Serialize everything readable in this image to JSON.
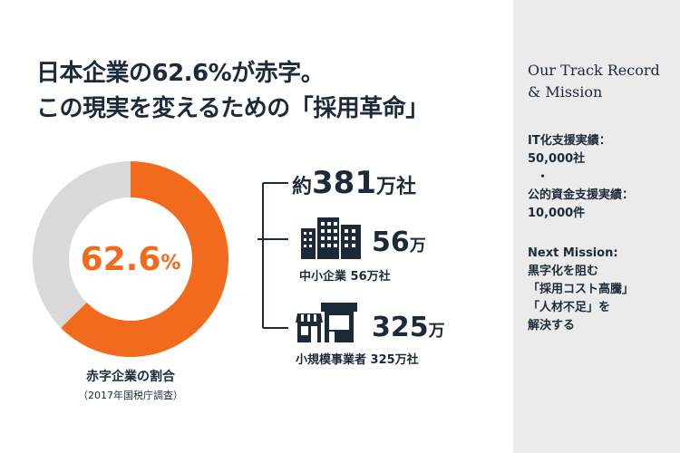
{
  "headline": {
    "line1": "日本企業の62.6%が赤字。",
    "line2": "この現実を変えるための「採用革命」"
  },
  "donut": {
    "value_number": "62.6",
    "value_unit": "%",
    "label": "赤字企業の割合",
    "source": "（2017年国税庁調査）",
    "colors": {
      "filled": "#f26a1b",
      "remaining": "#d9d9d9"
    }
  },
  "breakdown": {
    "total_prefix": "約",
    "total_number": "381",
    "total_suffix": "万社",
    "sme": {
      "icon": "office-buildings-icon",
      "number": "56",
      "unit": "万",
      "label": "中小企業 56万社"
    },
    "small": {
      "icon": "storefront-icon",
      "number": "325",
      "unit": "万",
      "label": "小規模事業者 325万社"
    }
  },
  "sidebar": {
    "title_line1": "Our Track Record",
    "title_line2": "& Mission",
    "it_label": "IT化支援実績：",
    "it_value": "50,000社",
    "bullet": "・",
    "fund_label": "公的資金支援実績：",
    "fund_value": "10,000件",
    "mission_label": "Next Mission:",
    "mission_lines": [
      "黒字化を阻む",
      "「採用コスト高騰」",
      "「人材不足」を",
      "解決する"
    ]
  },
  "chart_data": {
    "type": "pie",
    "subtype": "donut",
    "categories": [
      "赤字企業",
      ""
    ],
    "values": [
      62.6,
      37.4
    ],
    "unit": "%",
    "title": "赤字企業の割合",
    "subtitle": "（2017年国税庁調査）",
    "colors": [
      "#f26a1b",
      "#d9d9d9"
    ]
  }
}
